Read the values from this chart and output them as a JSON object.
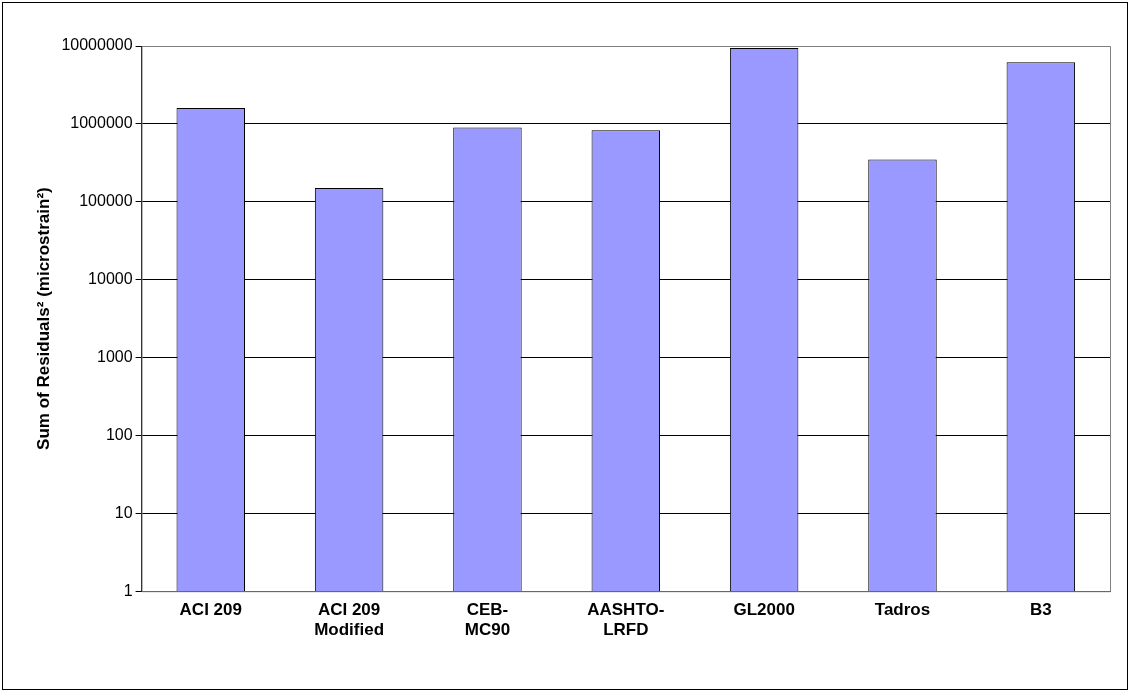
{
  "chart_data": {
    "type": "bar",
    "categories": [
      "ACI 209",
      "ACI 209\nModified",
      "CEB-\nMC90",
      "AASHTO-\nLRFD",
      "GL2000",
      "Tadros",
      "B3"
    ],
    "values": [
      1600000,
      150000,
      900000,
      830000,
      9400000,
      350000,
      6200000
    ],
    "color": "#9999ff",
    "ylabel": "Sum of Residuals² (microstrain²)",
    "log": "y",
    "ylim": [
      1,
      10000000
    ],
    "yticks": [
      1,
      10,
      100,
      1000,
      10000,
      100000,
      1000000,
      10000000
    ],
    "grid": "y",
    "legend": false
  }
}
